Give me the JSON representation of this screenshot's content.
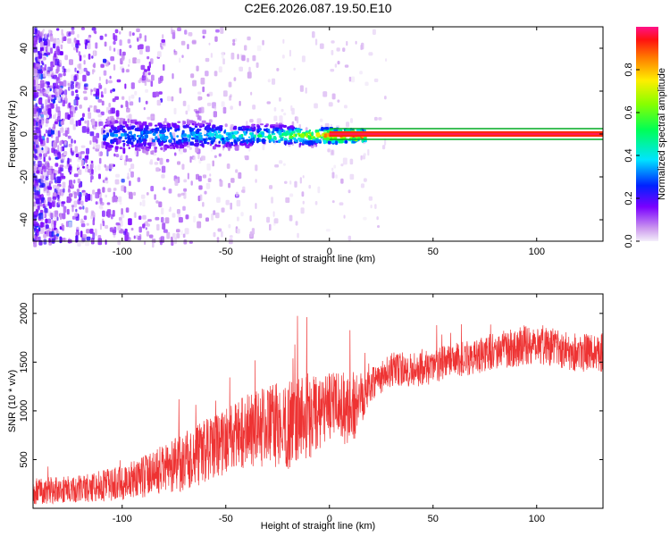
{
  "title": "C2E6.2026.087.19.50.E10",
  "chart_data": [
    {
      "type": "heatmap",
      "xlabel": "Height of straight line (km)",
      "ylabel": "Frequency (Hz)",
      "xlim": [
        -143,
        132
      ],
      "ylim": [
        -50,
        50
      ],
      "xticks": [
        -100,
        -50,
        0,
        50,
        100
      ],
      "yticks": [
        -40,
        -20,
        0,
        20,
        40
      ],
      "colorbar": {
        "label": "Normalized spectral amplitude",
        "range": [
          0,
          1
        ],
        "ticks": [
          "0.0",
          "0.2",
          "0.4",
          "0.6",
          "0.8"
        ]
      },
      "tone": {
        "frequency_hz": 0,
        "bracket_lines_hz": [
          -2.5,
          2.5
        ],
        "bracket_color": "#00aa22",
        "strong_from_km": 0
      },
      "ridge": [
        {
          "x": -110,
          "amp": 0.3
        },
        {
          "x": -100,
          "amp": 0.34
        },
        {
          "x": -90,
          "amp": 0.36
        },
        {
          "x": -80,
          "amp": 0.38
        },
        {
          "x": -70,
          "amp": 0.4
        },
        {
          "x": -60,
          "amp": 0.42
        },
        {
          "x": -50,
          "amp": 0.44
        },
        {
          "x": -40,
          "amp": 0.46
        },
        {
          "x": -30,
          "amp": 0.5
        },
        {
          "x": -20,
          "amp": 0.62
        },
        {
          "x": -10,
          "amp": 0.75
        },
        {
          "x": -5,
          "amp": 0.8
        },
        {
          "x": 0,
          "amp": 0.92
        },
        {
          "x": 10,
          "amp": 0.95
        },
        {
          "x": 20,
          "amp": 0.95
        }
      ]
    },
    {
      "type": "line",
      "xlabel": "Height of straight line (km)",
      "ylabel": "SNR (10 * v/v)",
      "xlim": [
        -143,
        132
      ],
      "ylim": [
        0,
        2200
      ],
      "xticks": [
        -100,
        -50,
        0,
        50,
        100
      ],
      "yticks": [
        500,
        1000,
        1500,
        2000
      ],
      "color": "#ee3333",
      "x": [
        -143,
        -120,
        -100,
        -90,
        -80,
        -70,
        -60,
        -50,
        -40,
        -30,
        -20,
        -15,
        -10,
        -5,
        0,
        5,
        10,
        15,
        20,
        25,
        30,
        40,
        50,
        60,
        70,
        80,
        90,
        100,
        110,
        120,
        132
      ],
      "y": [
        180,
        200,
        260,
        330,
        400,
        480,
        580,
        700,
        800,
        850,
        850,
        900,
        950,
        950,
        1050,
        1050,
        1000,
        1150,
        1300,
        1350,
        1420,
        1420,
        1450,
        1520,
        1550,
        1620,
        1650,
        1700,
        1650,
        1600,
        1600
      ],
      "spread": [
        140,
        140,
        180,
        220,
        250,
        300,
        330,
        350,
        380,
        420,
        450,
        480,
        450,
        400,
        350,
        350,
        400,
        300,
        200,
        180,
        180,
        180,
        180,
        180,
        180,
        190,
        200,
        220,
        200,
        200,
        200
      ]
    }
  ]
}
